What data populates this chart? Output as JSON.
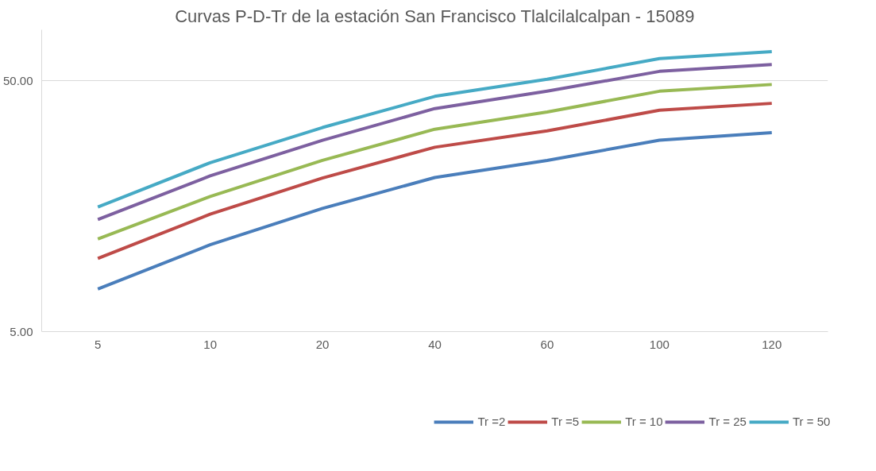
{
  "chart_data": {
    "type": "line",
    "title": "Curvas P-D-Tr de la estación San Francisco Tlalcilalcalpan - 15089",
    "categories": [
      "5",
      "10",
      "20",
      "40",
      "60",
      "100",
      "120"
    ],
    "series": [
      {
        "name": "Tr =2",
        "color": "#4a7ebb",
        "values": [
          7.4,
          11.1,
          15.5,
          20.6,
          24.1,
          29.0,
          31.1
        ]
      },
      {
        "name": "Tr =5",
        "color": "#be4b48",
        "values": [
          9.8,
          14.7,
          20.5,
          27.2,
          31.6,
          38.2,
          40.7
        ]
      },
      {
        "name": "Tr = 10",
        "color": "#98b954",
        "values": [
          11.7,
          17.3,
          24.1,
          32.1,
          37.6,
          45.5,
          48.4
        ]
      },
      {
        "name": "Tr = 25",
        "color": "#7d60a0",
        "values": [
          14.0,
          20.9,
          29.0,
          38.8,
          45.5,
          54.6,
          58.1
        ]
      },
      {
        "name": "Tr = 50",
        "color": "#46aac5",
        "values": [
          15.7,
          23.6,
          32.6,
          43.4,
          50.8,
          61.4,
          65.4
        ]
      }
    ],
    "log": "y",
    "ylim": [
      5,
      80
    ],
    "yticks": [
      {
        "value": 5,
        "label": "5.00"
      },
      {
        "value": 50,
        "label": "50.00"
      }
    ],
    "grid": "y",
    "legend": "bottom",
    "marker": "none",
    "line_style": "solid"
  }
}
